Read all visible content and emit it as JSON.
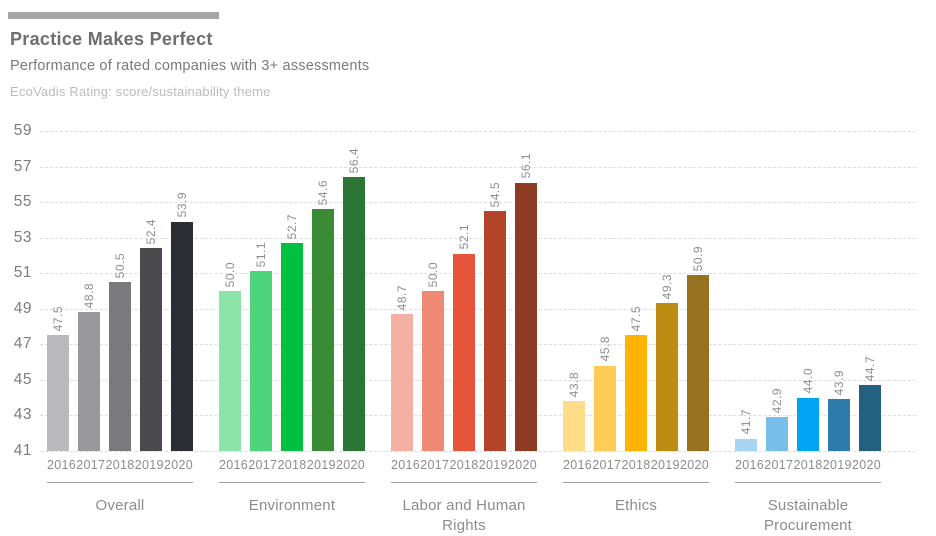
{
  "header": {
    "title": "Practice Makes Perfect",
    "subtitle": "Performance of rated companies with 3+ assessments",
    "caption": "EcoVadis Rating: score/sustainability theme"
  },
  "chart_data": {
    "type": "bar",
    "title": "Practice Makes Perfect",
    "subtitle": "Performance of rated companies with 3+ assessments",
    "unit_note": "EcoVadis Rating: score/sustainability theme",
    "ylim": [
      41,
      59
    ],
    "yticks": [
      59,
      57,
      55,
      53,
      51,
      49,
      47,
      45,
      43,
      41
    ],
    "grid": true,
    "grid_style": "dashed",
    "legend_position": "none",
    "categories": [
      "2016",
      "2017",
      "2018",
      "2019",
      "2020"
    ],
    "series": [
      {
        "name": "Overall",
        "values": [
          47.5,
          48.8,
          50.5,
          52.4,
          53.9
        ],
        "colors": [
          "#b9b9bb",
          "#98989c",
          "#7a7a7c",
          "#4a4a4c",
          "#2b2e33"
        ]
      },
      {
        "name": "Environment",
        "values": [
          50.0,
          51.1,
          52.7,
          54.6,
          56.4
        ],
        "colors": [
          "#8ce3a8",
          "#4ed57c",
          "#00c13f",
          "#3a8a36",
          "#2c7634"
        ]
      },
      {
        "name": "Labor and Human Rights",
        "values": [
          48.7,
          50.0,
          52.1,
          54.5,
          56.1
        ],
        "colors": [
          "#f5b0a4",
          "#f08876",
          "#e6543a",
          "#b44429",
          "#8f3a23"
        ]
      },
      {
        "name": "Ethics",
        "values": [
          43.8,
          45.8,
          47.5,
          49.3,
          50.9
        ],
        "colors": [
          "#ffdc88",
          "#ffcd55",
          "#ffb405",
          "#bd8c13",
          "#97711f"
        ]
      },
      {
        "name": "Sustainable Procurement",
        "values": [
          41.7,
          42.9,
          44.0,
          43.9,
          44.7
        ],
        "colors": [
          "#a7d4f0",
          "#77bee8",
          "#00a4f5",
          "#2e7cab",
          "#24607f"
        ]
      }
    ]
  }
}
